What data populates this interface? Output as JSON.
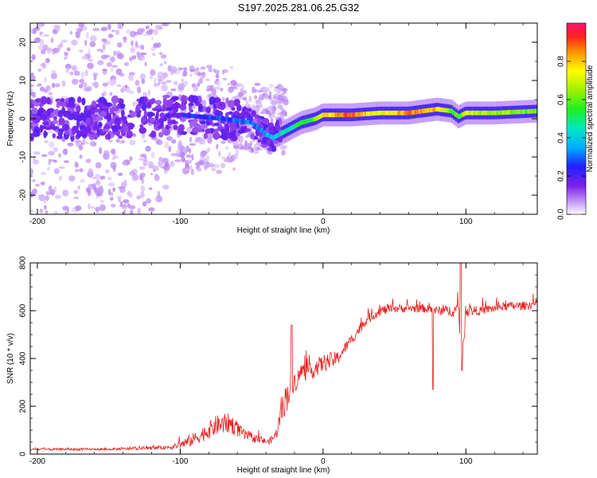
{
  "title": "S197.2025.281.06.25.G32",
  "colors": {
    "snr_line": "#e82020",
    "spectro_dominant": "#5a10e0",
    "spectro_faint": "#d8c8f8"
  },
  "chart_data": [
    {
      "type": "heatmap",
      "name": "spectrogram",
      "xlabel": "Height of straight line (km)",
      "ylabel": "Frequency (Hz)",
      "xlim": [
        -205,
        150
      ],
      "ylim": [
        -25,
        25
      ],
      "xticks": [
        -200,
        -100,
        0,
        100
      ],
      "yticks": [
        -20,
        -10,
        0,
        10,
        20
      ],
      "xtick_labels": [
        "-200",
        "-100",
        "0",
        "100"
      ],
      "ytick_labels": [
        "-20",
        "-10",
        "0",
        "10",
        "20"
      ],
      "colorbar": {
        "label": "Normalized spectral amplitude",
        "range": [
          0.0,
          1.0
        ],
        "ticks": [
          0.0,
          0.2,
          0.4,
          0.6,
          0.8
        ],
        "tick_labels": [
          "0.0",
          "0.2",
          "0.4",
          "0.6",
          "0.8"
        ],
        "colormap": "rainbow (violet to red)"
      },
      "ridge": {
        "description": "dominant frequency vs height",
        "x": [
          -205,
          -150,
          -100,
          -70,
          -50,
          -40,
          -35,
          -25,
          -15,
          -5,
          0,
          20,
          40,
          60,
          80,
          90,
          95,
          100,
          120,
          150
        ],
        "y": [
          0,
          0,
          1,
          0,
          -1,
          -4,
          -5,
          -3,
          -1,
          0,
          1,
          1,
          1.5,
          1.5,
          2.5,
          2,
          0.5,
          1.5,
          1.5,
          2
        ],
        "amplitude": [
          0.15,
          0.15,
          0.2,
          0.3,
          0.3,
          0.35,
          0.4,
          0.45,
          0.55,
          0.6,
          0.75,
          0.9,
          0.7,
          0.85,
          0.8,
          0.6,
          0.55,
          0.7,
          0.65,
          0.6
        ]
      }
    },
    {
      "type": "line",
      "name": "snr",
      "xlabel": "Height of straight line (km)",
      "ylabel": "SNR (10 * v/v)",
      "xlim": [
        -205,
        150
      ],
      "ylim": [
        0,
        800
      ],
      "xticks": [
        -200,
        -100,
        0,
        100
      ],
      "yticks": [
        0,
        200,
        400,
        600,
        800
      ],
      "xtick_labels": [
        "-200",
        "-100",
        "0",
        "100"
      ],
      "ytick_labels": [
        "0",
        "200",
        "400",
        "600",
        "800"
      ],
      "series": [
        {
          "name": "SNR",
          "x": [
            -205,
            -180,
            -150,
            -120,
            -105,
            -95,
            -85,
            -75,
            -65,
            -55,
            -45,
            -38,
            -33,
            -28,
            -25,
            -22,
            -18,
            -15,
            -10,
            -5,
            0,
            5,
            10,
            15,
            20,
            25,
            30,
            40,
            50,
            60,
            70,
            80,
            90,
            95,
            97,
            100,
            110,
            120,
            130,
            140,
            150
          ],
          "y": [
            20,
            20,
            20,
            25,
            30,
            50,
            80,
            120,
            130,
            80,
            60,
            50,
            80,
            200,
            250,
            300,
            310,
            350,
            340,
            360,
            380,
            390,
            400,
            440,
            480,
            520,
            560,
            600,
            610,
            610,
            610,
            600,
            600,
            600,
            350,
            600,
            600,
            610,
            620,
            620,
            630
          ],
          "noise_amplitude": [
            8,
            8,
            8,
            10,
            15,
            40,
            50,
            70,
            70,
            40,
            25,
            20,
            40,
            90,
            120,
            80,
            70,
            60,
            60,
            60,
            60,
            60,
            50,
            40,
            40,
            40,
            35,
            35,
            30,
            30,
            30,
            30,
            40,
            60,
            60,
            40,
            30,
            30,
            30,
            30,
            30
          ]
        }
      ]
    }
  ]
}
